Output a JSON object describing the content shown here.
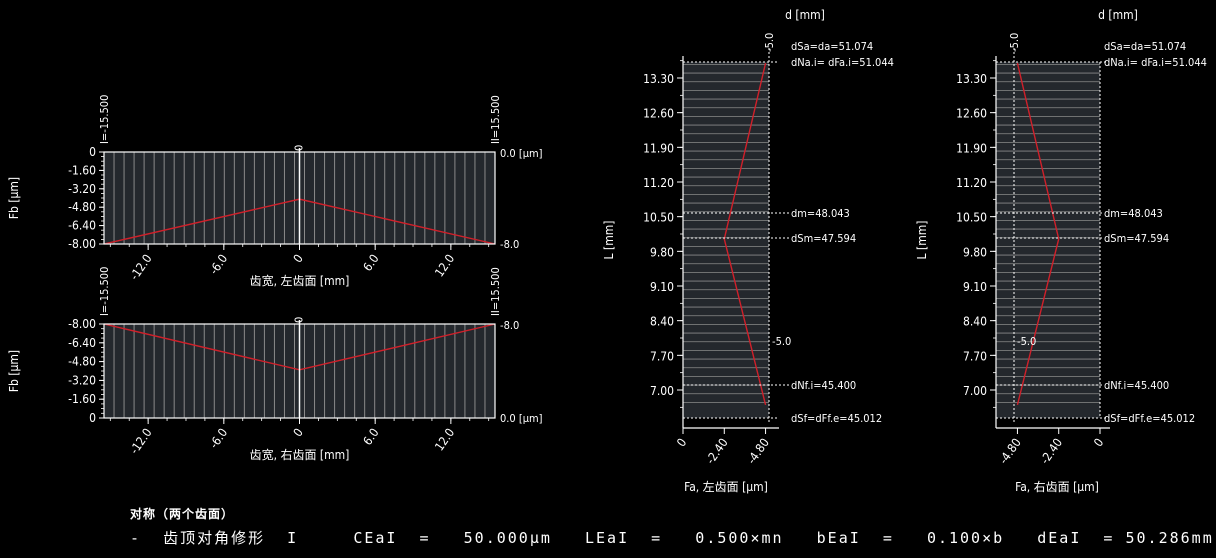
{
  "chart_data": [
    {
      "id": "fb-top",
      "type": "area",
      "ylabel": "Fb [μm]",
      "xlabel": "齿宽, 左齿面 [mm]",
      "x_ticks": [
        "-12.0",
        "-6.0",
        "0",
        "6.0",
        "12.0"
      ],
      "y_ticks": [
        "0",
        "-1.60",
        "-3.20",
        "-4.80",
        "-6.40",
        "-8.00"
      ],
      "ylim": [
        -8.0,
        0
      ],
      "xlim": [
        -15.5,
        15.5
      ],
      "x": [
        -15.5,
        0,
        15.5
      ],
      "values": [
        -8.0,
        -4.1,
        -8.0
      ],
      "left_limit_label": "I=-15.500",
      "right_limit_label": "II=15.500",
      "top_right_label": "0.0 [μm]",
      "bottom_right_label": "-8.0",
      "center_top_label": "0"
    },
    {
      "id": "fb-bottom",
      "type": "area",
      "ylabel": "Fb [μm]",
      "xlabel": "齿宽, 右齿面 [mm]",
      "x_ticks": [
        "-12.0",
        "-6.0",
        "0",
        "6.0",
        "12.0"
      ],
      "y_ticks": [
        "-8.00",
        "-6.40",
        "-4.80",
        "-3.20",
        "-1.60",
        "0"
      ],
      "ylim": [
        -8.0,
        0
      ],
      "xlim": [
        -15.5,
        15.5
      ],
      "x": [
        -15.5,
        0,
        15.5
      ],
      "values": [
        -8.0,
        -4.1,
        -8.0
      ],
      "left_limit_label": "I=-15.500",
      "right_limit_label": "II=15.500",
      "top_right_label": "-8.0",
      "bottom_right_label": "0.0 [μm]",
      "center_top_label": "0"
    },
    {
      "id": "fa-left",
      "type": "line",
      "title": "d [mm]",
      "ylabel": "L [mm]",
      "xlabel": "Fa, 左齿面 [μm]",
      "y_ticks": [
        "13.30",
        "12.60",
        "11.90",
        "11.20",
        "10.50",
        "9.80",
        "9.10",
        "8.40",
        "7.70",
        "7.00"
      ],
      "x_ticks": [
        "0",
        "-2.40",
        "-4.80"
      ],
      "xlim": [
        0,
        -5.0
      ],
      "x": [
        -4.8,
        -2.4,
        -4.8
      ],
      "y": [
        13.6,
        10.05,
        6.7
      ],
      "annotations": {
        "dSa": "dSa=da=51.074",
        "dNa": "dNa.i= dFa.i=51.044",
        "dm": "dm=48.043",
        "dSm": "dSm=47.594",
        "dNf": "dNf.i=45.400",
        "dSf": "dSf=dFf.e=45.012",
        "top_limit": "-5.0",
        "mid_limit": "-5.0"
      }
    },
    {
      "id": "fa-right",
      "type": "line",
      "title": "d [mm]",
      "ylabel": "L [mm]",
      "xlabel": "Fa, 右齿面 [μm]",
      "y_ticks": [
        "13.30",
        "12.60",
        "11.90",
        "11.20",
        "10.50",
        "9.80",
        "9.10",
        "8.40",
        "7.70",
        "7.00"
      ],
      "x_ticks": [
        "-4.80",
        "-2.40",
        "0"
      ],
      "xlim": [
        -5.0,
        0
      ],
      "x": [
        -4.8,
        -2.4,
        -4.8
      ],
      "y": [
        13.6,
        10.05,
        6.7
      ],
      "annotations": {
        "dSa": "dSa=da=51.074",
        "dNa": "dNa.i= dFa.i=51.044",
        "dm": "dm=48.043",
        "dSm": "dSm=47.594",
        "dNf": "dNf.i=45.400",
        "dSf": "dSf=dFf.e=45.012",
        "top_limit": "-5.0",
        "mid_limit": "-5.0"
      }
    }
  ],
  "footer": {
    "title": "对称（两个齿面）",
    "line": "-  齿顶对角修形  I     CEaI  =   50.000μm   LEaI  =   0.500×mn   bEaI  =   0.100×b   dEaI  = 50.286mm"
  },
  "colors": {
    "profile": "#d0202a",
    "fill": "#24282d",
    "grid": "#8a8a8a",
    "frame": "#ffffff"
  }
}
